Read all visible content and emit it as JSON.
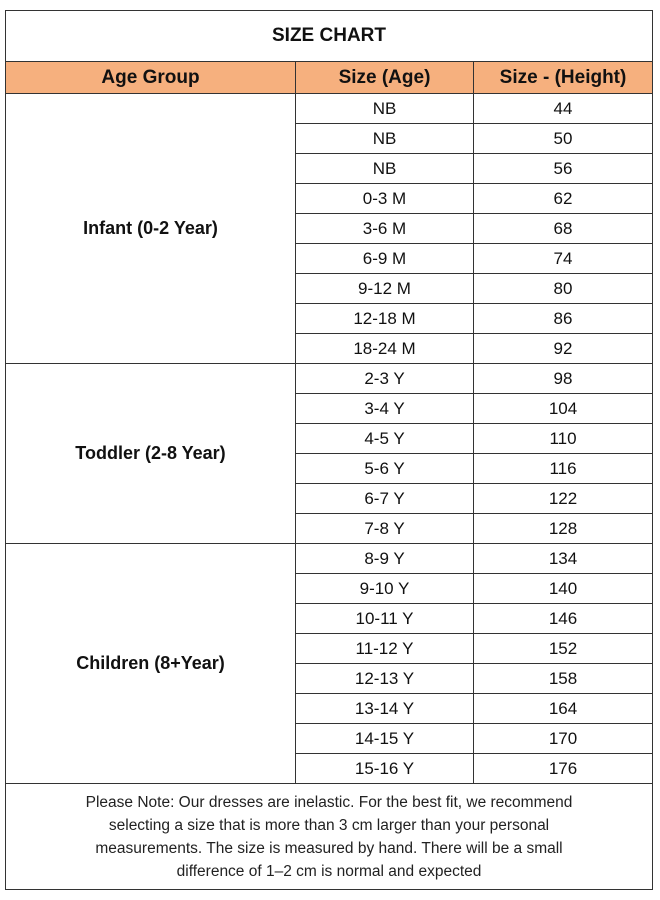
{
  "header": {
    "title": "SIZE CHART"
  },
  "table": {
    "columns": [
      "Age Group",
      "Size (Age)",
      "Size - (Height)"
    ],
    "groups": [
      {
        "label": "Infant (0-2 Year)",
        "rows": [
          [
            "NB",
            44
          ],
          [
            "NB",
            50
          ],
          [
            "NB",
            56
          ],
          [
            "0-3 M",
            62
          ],
          [
            "3-6 M",
            68
          ],
          [
            "6-9 M",
            74
          ],
          [
            "9-12 M",
            80
          ],
          [
            "12-18 M",
            86
          ],
          [
            "18-24 M",
            92
          ]
        ]
      },
      {
        "label": "Toddler (2-8 Year)",
        "rows": [
          [
            "2-3 Y",
            98
          ],
          [
            "3-4 Y",
            104
          ],
          [
            "4-5 Y",
            110
          ],
          [
            "5-6 Y",
            116
          ],
          [
            "6-7 Y",
            122
          ],
          [
            "7-8 Y",
            128
          ]
        ]
      },
      {
        "label": "Children (8+Year)",
        "rows": [
          [
            "8-9 Y",
            134
          ],
          [
            "9-10 Y",
            140
          ],
          [
            "10-11 Y",
            146
          ],
          [
            "11-12 Y",
            152
          ],
          [
            "12-13 Y",
            158
          ],
          [
            "13-14 Y",
            164
          ],
          [
            "14-15 Y",
            170
          ],
          [
            "15-16 Y",
            176
          ]
        ]
      }
    ]
  },
  "note": {
    "lines": [
      "Please Note: Our dresses are inelastic. For the best fit, we recommend",
      "selecting a size that is more than 3 cm larger than your personal",
      "measurements. The size is measured by hand. There will be a small",
      "difference of 1–2 cm is normal and expected"
    ]
  }
}
